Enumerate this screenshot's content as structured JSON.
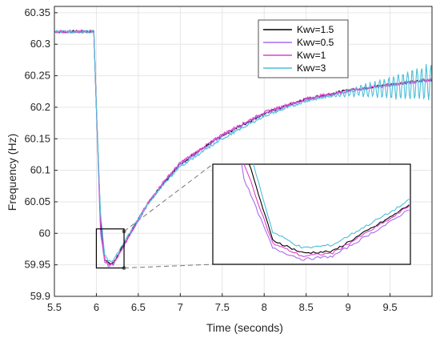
{
  "chart_data": {
    "type": "line",
    "title": "",
    "xlabel": "Time (seconds)",
    "ylabel": "Frequency (Hz)",
    "xlim": [
      5.5,
      10.0
    ],
    "ylim": [
      59.9,
      60.36
    ],
    "x_ticks": [
      5.5,
      6,
      6.5,
      7,
      7.5,
      8,
      8.5,
      9,
      9.5
    ],
    "x_tick_labels": [
      "5.5",
      "6",
      "6.5",
      "7",
      "7.5",
      "8",
      "8.5",
      "9",
      "9.5"
    ],
    "y_ticks": [
      59.9,
      59.95,
      60,
      60.05,
      60.1,
      60.15,
      60.2,
      60.25,
      60.3,
      60.35
    ],
    "y_tick_labels": [
      "59.9",
      "59.95",
      "60",
      "60.05",
      "60.1",
      "60.15",
      "60.2",
      "60.25",
      "60.3",
      "60.35"
    ],
    "grid": true,
    "legend_position": "top-right",
    "series": [
      {
        "name": "Kwv=1.5",
        "color": "#000000",
        "x": [
          5.5,
          5.97,
          6.0,
          6.05,
          6.1,
          6.15,
          6.2,
          6.3,
          6.4,
          6.6,
          6.8,
          7.0,
          7.5,
          8.0,
          8.5,
          9.0,
          9.5,
          10.0
        ],
        "y": [
          60.32,
          60.32,
          60.2,
          60.02,
          59.96,
          59.952,
          59.953,
          59.975,
          60.0,
          60.045,
          60.08,
          60.11,
          60.155,
          60.19,
          60.213,
          60.227,
          60.236,
          60.244
        ]
      },
      {
        "name": "Kwv=0.5",
        "color": "#a56cf0",
        "x": [
          5.5,
          5.97,
          6.0,
          6.05,
          6.1,
          6.15,
          6.2,
          6.3,
          6.4,
          6.6,
          6.8,
          7.0,
          7.5,
          8.0,
          8.5,
          9.0,
          9.5,
          10.0
        ],
        "y": [
          60.32,
          60.32,
          60.2,
          60.0,
          59.955,
          59.948,
          59.95,
          59.972,
          59.998,
          60.043,
          60.08,
          60.11,
          60.155,
          60.19,
          60.212,
          60.225,
          60.235,
          60.243
        ]
      },
      {
        "name": "Kwv=1",
        "color": "#e040c8",
        "x": [
          5.5,
          5.97,
          6.0,
          6.05,
          6.1,
          6.15,
          6.2,
          6.3,
          6.4,
          6.6,
          6.8,
          7.0,
          7.5,
          8.0,
          8.5,
          9.0,
          9.5,
          10.0
        ],
        "y": [
          60.32,
          60.32,
          60.2,
          60.01,
          59.958,
          59.95,
          59.952,
          59.974,
          60.0,
          60.045,
          60.082,
          60.112,
          60.157,
          60.192,
          60.214,
          60.227,
          60.236,
          60.245
        ]
      },
      {
        "name": "Kwv=3",
        "color": "#4bbfd8",
        "x": [
          5.5,
          5.97,
          6.0,
          6.05,
          6.1,
          6.15,
          6.2,
          6.3,
          6.4,
          6.6,
          6.8,
          7.0,
          7.5,
          8.0,
          8.5,
          8.8,
          9.0,
          9.5,
          10.0
        ],
        "y": [
          60.32,
          60.32,
          60.2,
          60.03,
          59.965,
          59.955,
          59.957,
          59.978,
          60.002,
          60.044,
          60.078,
          60.106,
          60.15,
          60.186,
          60.21,
          60.218,
          60.223,
          60.232,
          60.24
        ],
        "oscillation_amplitude_from_x": 8.8,
        "oscillation_amplitude_max": 0.06
      }
    ],
    "inset": {
      "type": "zoom",
      "source_xlim": [
        6.0,
        6.33
      ],
      "source_ylim": [
        59.945,
        60.007
      ]
    }
  }
}
